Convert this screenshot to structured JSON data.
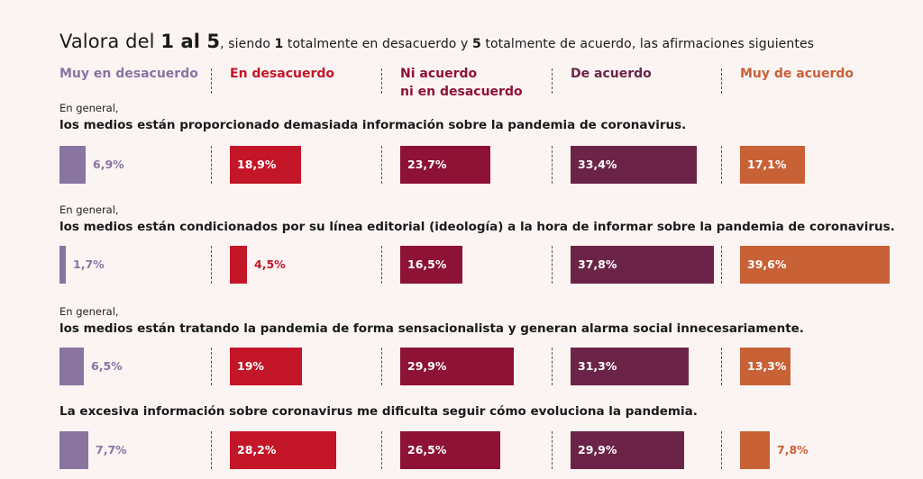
{
  "title": {
    "part1": "Valora del ",
    "part2": "1 al 5",
    "part3": ", siendo ",
    "part4": "1",
    "part5": " totalmente en desacuerdo y ",
    "part6": "5",
    "part7": " totalmente de acuerdo, las afirmaciones siguientes"
  },
  "colors": [
    "#8a74a0",
    "#c41629",
    "#8e1136",
    "#6b2447",
    "#c96137"
  ],
  "chart_data": {
    "type": "bar",
    "categories": [
      "Muy en desacuerdo",
      "En desacuerdo",
      "Ni acuerdo ni en desacuerdo",
      "De acuerdo",
      "Muy de acuerdo"
    ],
    "category_lines": [
      [
        "Muy en desacuerdo"
      ],
      [
        "En desacuerdo"
      ],
      [
        "Ni acuerdo",
        "ni en desacuerdo"
      ],
      [
        "De acuerdo"
      ],
      [
        "Muy de acuerdo"
      ]
    ],
    "unit": "%",
    "questions": [
      {
        "intro": "En general,",
        "text": "los medios están proporcionado demasiada información sobre la pandemia de coronavirus.",
        "values": [
          6.9,
          18.9,
          23.7,
          33.4,
          17.1
        ],
        "labels": [
          "6,9%",
          "18,9%",
          "23,7%",
          "33,4%",
          "17,1%"
        ]
      },
      {
        "intro": "En general,",
        "text": "los medios están condicionados por su línea editorial (ideología) a la hora de informar sobre la pandemia de coronavirus.",
        "values": [
          1.7,
          4.5,
          16.5,
          37.8,
          39.6
        ],
        "labels": [
          "1,7%",
          "4,5%",
          "16,5%",
          "37,8%",
          "39,6%"
        ]
      },
      {
        "intro": "En general,",
        "text": "los medios están tratando la pandemia de forma sensacionalista y generan alarma social innecesariamente.",
        "values": [
          6.5,
          19,
          29.9,
          31.3,
          13.3
        ],
        "labels": [
          "6,5%",
          "19%",
          "29,9%",
          "31,3%",
          "13,3%"
        ]
      },
      {
        "intro": "",
        "text": "La excesiva información sobre coronavirus me dificulta seguir cómo evoluciona la pandemia.",
        "values": [
          7.7,
          28.2,
          26.5,
          29.9,
          7.8
        ],
        "labels": [
          "7,7%",
          "28,2%",
          "26,5%",
          "29,9%",
          "7,8%"
        ]
      }
    ]
  }
}
